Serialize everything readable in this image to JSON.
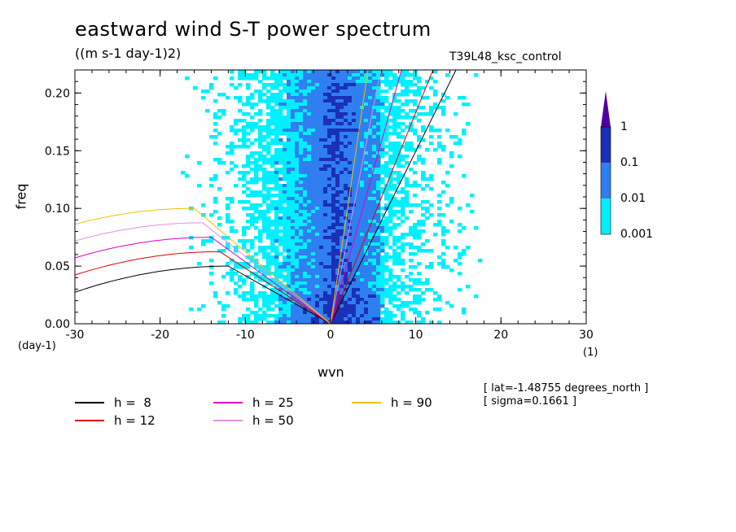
{
  "header": {
    "title": "eastward wind S-T power spectrum",
    "units": "((m s-1 day-1)2)",
    "run": "T39L48_ksc_control"
  },
  "info": {
    "lat": "[ lat=-1.48755 degrees_north ]",
    "sigma": "[ sigma=0.1661 ]"
  },
  "colorbar": {
    "labels": [
      "1",
      "0.1",
      "0.01",
      "0.001"
    ],
    "colors": [
      "#5000a0",
      "#1a30b8",
      "#2f7ff0",
      "#00f0ff"
    ]
  },
  "legend": [
    {
      "label": "h =  8",
      "color": "#000000"
    },
    {
      "label": "h = 12",
      "color": "#e00000"
    },
    {
      "label": "h = 25",
      "color": "#e000c0"
    },
    {
      "label": "h = 50",
      "color": "#e090e0"
    },
    {
      "label": "h = 90",
      "color": "#f0c000"
    }
  ],
  "chart_data": {
    "type": "heatmap",
    "title": "eastward wind S-T power spectrum",
    "xlabel": "wvn",
    "ylabel": "freq",
    "x_unit_label": "(1)",
    "y_unit_label": "(day-1)",
    "xlim": [
      -30,
      30
    ],
    "ylim": [
      0,
      0.22
    ],
    "xticks": [
      -30,
      -20,
      -10,
      0,
      10,
      20,
      30
    ],
    "yticks": [
      0.0,
      0.05,
      0.1,
      0.15,
      0.2
    ],
    "xtick_labels": [
      "-30",
      "-20",
      "-10",
      "0",
      "10",
      "20",
      "30"
    ],
    "ytick_labels": [
      "0.00",
      "0.05",
      "0.10",
      "0.15",
      "0.20"
    ],
    "contour_levels": [
      0.001,
      0.01,
      0.1,
      1
    ],
    "dispersion_curves": [
      {
        "name": "h =  8",
        "equivalent_depth": 8
      },
      {
        "name": "h = 12",
        "equivalent_depth": 12
      },
      {
        "name": "h = 25",
        "equivalent_depth": 25
      },
      {
        "name": "h = 50",
        "equivalent_depth": 50
      },
      {
        "name": "h = 90",
        "equivalent_depth": 90
      }
    ]
  }
}
